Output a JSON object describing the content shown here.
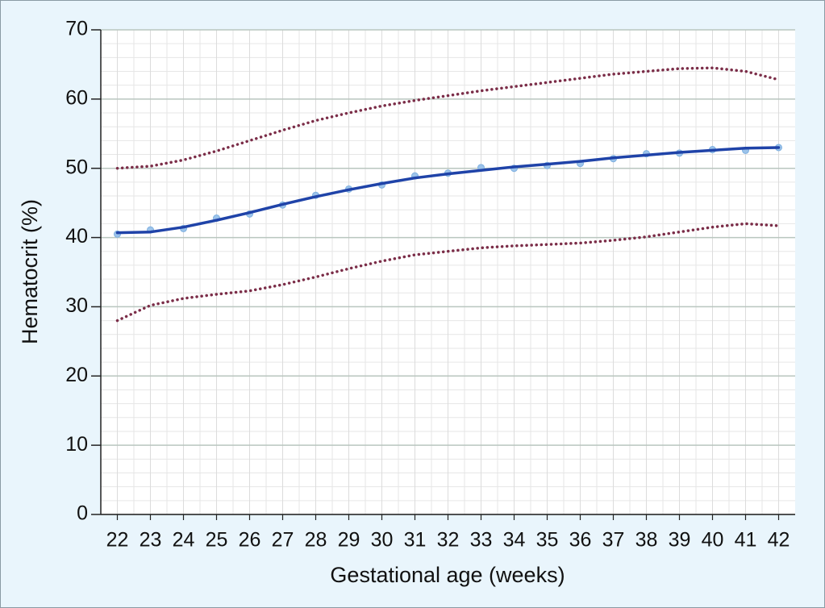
{
  "chart_data": {
    "type": "line",
    "x_label": "Gestational age (weeks)",
    "y_label": "Hematocrit (%)",
    "x": [
      22,
      23,
      24,
      25,
      26,
      27,
      28,
      29,
      30,
      31,
      32,
      33,
      34,
      35,
      36,
      37,
      38,
      39,
      40,
      41,
      42
    ],
    "xlim": [
      21.5,
      42.5
    ],
    "xticks": [
      22,
      23,
      24,
      25,
      26,
      27,
      28,
      29,
      30,
      31,
      32,
      33,
      34,
      35,
      36,
      37,
      38,
      39,
      40,
      41,
      42
    ],
    "ylim": [
      0,
      70
    ],
    "yticks": [
      0,
      10,
      20,
      30,
      40,
      50,
      60,
      70
    ],
    "grid": true,
    "series": [
      {
        "color": "#7b2d48",
        "style": "dotted",
        "values": [
          50.0,
          50.3,
          51.2,
          52.5,
          54.0,
          55.5,
          56.9,
          58.0,
          59.0,
          59.8,
          60.5,
          61.2,
          61.8,
          62.4,
          63.0,
          63.6,
          64.0,
          64.4,
          64.5,
          64.0,
          62.8
        ]
      },
      {
        "color": "#9cc3ea",
        "style": "markers",
        "values": [
          40.5,
          41.1,
          41.3,
          42.8,
          43.4,
          44.7,
          46.1,
          47.0,
          47.6,
          48.9,
          49.3,
          50.1,
          50.0,
          50.4,
          50.7,
          51.4,
          52.1,
          52.2,
          52.7,
          52.6,
          53.0
        ]
      },
      {
        "color": "#1f43a8",
        "style": "solid",
        "values": [
          40.7,
          40.8,
          41.5,
          42.5,
          43.6,
          44.8,
          45.9,
          46.9,
          47.8,
          48.6,
          49.2,
          49.7,
          50.2,
          50.6,
          51.0,
          51.5,
          51.9,
          52.3,
          52.6,
          52.9,
          53.0
        ]
      },
      {
        "color": "#7b2d48",
        "style": "dotted",
        "values": [
          28.0,
          30.2,
          31.2,
          31.8,
          32.3,
          33.2,
          34.3,
          35.5,
          36.6,
          37.5,
          38.0,
          38.5,
          38.8,
          39.0,
          39.2,
          39.6,
          40.1,
          40.8,
          41.5,
          42.0,
          41.7
        ]
      }
    ]
  }
}
